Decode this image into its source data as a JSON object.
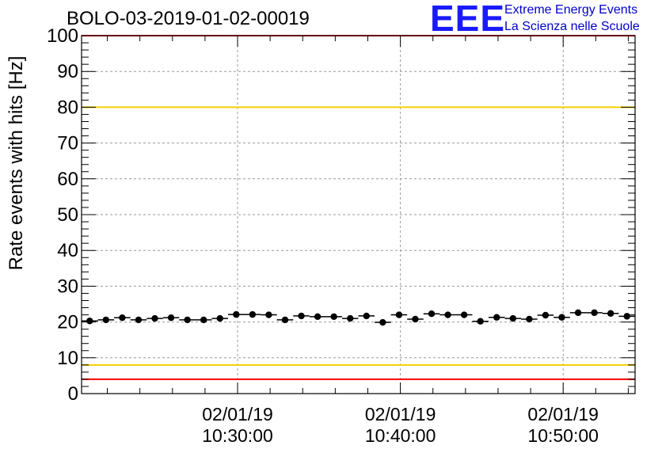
{
  "header": {
    "run_title": "BOLO-03-2019-01-02-00019",
    "logo_text": "EEE",
    "logo_line1": "Extreme Energy Events",
    "logo_line2": "La Scienza nelle Scuole"
  },
  "colors": {
    "logo": "#1a1aff",
    "limit_red": "#ff0000",
    "limit_yellow": "#f2d000",
    "points": "#000000",
    "grid": "#999999"
  },
  "chart_data": {
    "type": "scatter",
    "title": "BOLO-03-2019-01-02-00019",
    "ylabel": "Rate events with hits [Hz]",
    "xlabel": "",
    "ylim": [
      0,
      100
    ],
    "xlim": [
      "02/01/19 10:20:25",
      "02/01/19 10:54:25"
    ],
    "grid": true,
    "yticks": [
      "0",
      "10",
      "20",
      "30",
      "40",
      "50",
      "60",
      "70",
      "80",
      "90",
      "100"
    ],
    "xticks": [
      {
        "x": "02/01/19 10:30:00",
        "date": "02/01/19",
        "time": "10:30:00"
      },
      {
        "x": "02/01/19 10:40:00",
        "date": "02/01/19",
        "time": "10:40:00"
      },
      {
        "x": "02/01/19 10:50:00",
        "date": "02/01/19",
        "time": "10:50:00"
      }
    ],
    "reference_lines": [
      {
        "y": 100,
        "color": "#ff0000"
      },
      {
        "y": 80,
        "color": "#f2d000"
      },
      {
        "y": 8,
        "color": "#f2d000"
      },
      {
        "y": 4,
        "color": "#ff0000"
      }
    ],
    "series": [
      {
        "points": [
          {
            "x": "02/01/19 10:20:55",
            "y": 20.3
          },
          {
            "x": "02/01/19 10:21:55",
            "y": 20.6
          },
          {
            "x": "02/01/19 10:22:55",
            "y": 21.2
          },
          {
            "x": "02/01/19 10:23:55",
            "y": 20.6
          },
          {
            "x": "02/01/19 10:24:55",
            "y": 21.0
          },
          {
            "x": "02/01/19 10:25:55",
            "y": 21.2
          },
          {
            "x": "02/01/19 10:26:55",
            "y": 20.6
          },
          {
            "x": "02/01/19 10:27:55",
            "y": 20.6
          },
          {
            "x": "02/01/19 10:28:55",
            "y": 21.0
          },
          {
            "x": "02/01/19 10:29:55",
            "y": 22.1
          },
          {
            "x": "02/01/19 10:30:55",
            "y": 22.1
          },
          {
            "x": "02/01/19 10:31:55",
            "y": 22.0
          },
          {
            "x": "02/01/19 10:32:55",
            "y": 20.6
          },
          {
            "x": "02/01/19 10:33:55",
            "y": 21.7
          },
          {
            "x": "02/01/19 10:34:55",
            "y": 21.5
          },
          {
            "x": "02/01/19 10:35:55",
            "y": 21.5
          },
          {
            "x": "02/01/19 10:36:55",
            "y": 21.0
          },
          {
            "x": "02/01/19 10:37:55",
            "y": 21.7
          },
          {
            "x": "02/01/19 10:38:55",
            "y": 19.9
          },
          {
            "x": "02/01/19 10:39:55",
            "y": 22.0
          },
          {
            "x": "02/01/19 10:40:55",
            "y": 20.8
          },
          {
            "x": "02/01/19 10:41:55",
            "y": 22.3
          },
          {
            "x": "02/01/19 10:42:55",
            "y": 22.0
          },
          {
            "x": "02/01/19 10:43:55",
            "y": 22.0
          },
          {
            "x": "02/01/19 10:44:55",
            "y": 20.2
          },
          {
            "x": "02/01/19 10:45:55",
            "y": 21.3
          },
          {
            "x": "02/01/19 10:46:55",
            "y": 21.0
          },
          {
            "x": "02/01/19 10:47:55",
            "y": 20.8
          },
          {
            "x": "02/01/19 10:48:55",
            "y": 21.9
          },
          {
            "x": "02/01/19 10:49:55",
            "y": 21.3
          },
          {
            "x": "02/01/19 10:50:55",
            "y": 22.6
          },
          {
            "x": "02/01/19 10:51:55",
            "y": 22.6
          },
          {
            "x": "02/01/19 10:52:55",
            "y": 22.4
          },
          {
            "x": "02/01/19 10:53:55",
            "y": 21.6
          }
        ]
      }
    ]
  }
}
